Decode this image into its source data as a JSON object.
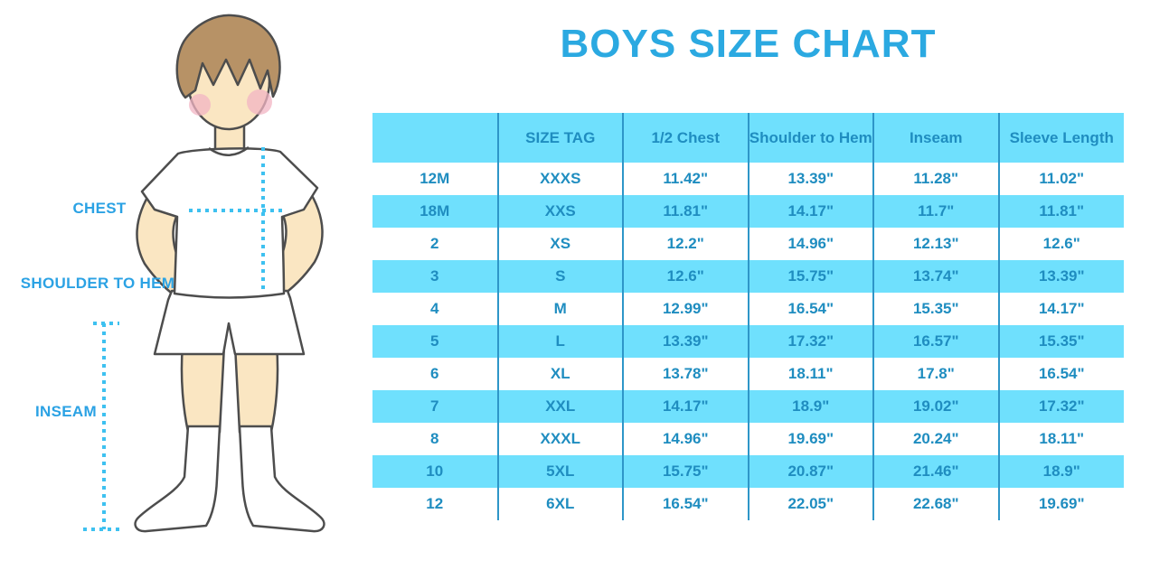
{
  "title": "BOYS SIZE CHART",
  "colors": {
    "title_blue": "#2BA9E1",
    "row_cyan": "#6FE0FD",
    "text_blue": "#1F8DC0",
    "divider_blue": "#2E96C8",
    "dotted_cyan": "#3EC1F0",
    "label_blue": "#2BA2E4",
    "skin": "#FAE6C2",
    "hair": "#B79266",
    "outline": "#4D4D4D",
    "blush": "#F2B4C3"
  },
  "illustration": {
    "labels": {
      "chest": "CHEST",
      "shoulder_to_hem": "SHOULDER TO HEM",
      "inseam": "INSEAM"
    }
  },
  "table": {
    "headers": [
      "",
      "SIZE TAG",
      "1/2 Chest",
      "Shoulder to Hem",
      "Inseam",
      "Sleeve Length"
    ],
    "rows": [
      [
        "12M",
        "XXXS",
        "11.42\"",
        "13.39\"",
        "11.28\"",
        "11.02\""
      ],
      [
        "18M",
        "XXS",
        "11.81\"",
        "14.17\"",
        "11.7\"",
        "11.81\""
      ],
      [
        "2",
        "XS",
        "12.2\"",
        "14.96\"",
        "12.13\"",
        "12.6\""
      ],
      [
        "3",
        "S",
        "12.6\"",
        "15.75\"",
        "13.74\"",
        "13.39\""
      ],
      [
        "4",
        "M",
        "12.99\"",
        "16.54\"",
        "15.35\"",
        "14.17\""
      ],
      [
        "5",
        "L",
        "13.39\"",
        "17.32\"",
        "16.57\"",
        "15.35\""
      ],
      [
        "6",
        "XL",
        "13.78\"",
        "18.11\"",
        "17.8\"",
        "16.54\""
      ],
      [
        "7",
        "XXL",
        "14.17\"",
        "18.9\"",
        "19.02\"",
        "17.32\""
      ],
      [
        "8",
        "XXXL",
        "14.96\"",
        "19.69\"",
        "20.24\"",
        "18.11\""
      ],
      [
        "10",
        "5XL",
        "15.75\"",
        "20.87\"",
        "21.46\"",
        "18.9\""
      ],
      [
        "12",
        "6XL",
        "16.54\"",
        "22.05\"",
        "22.68\"",
        "19.69\""
      ]
    ]
  }
}
